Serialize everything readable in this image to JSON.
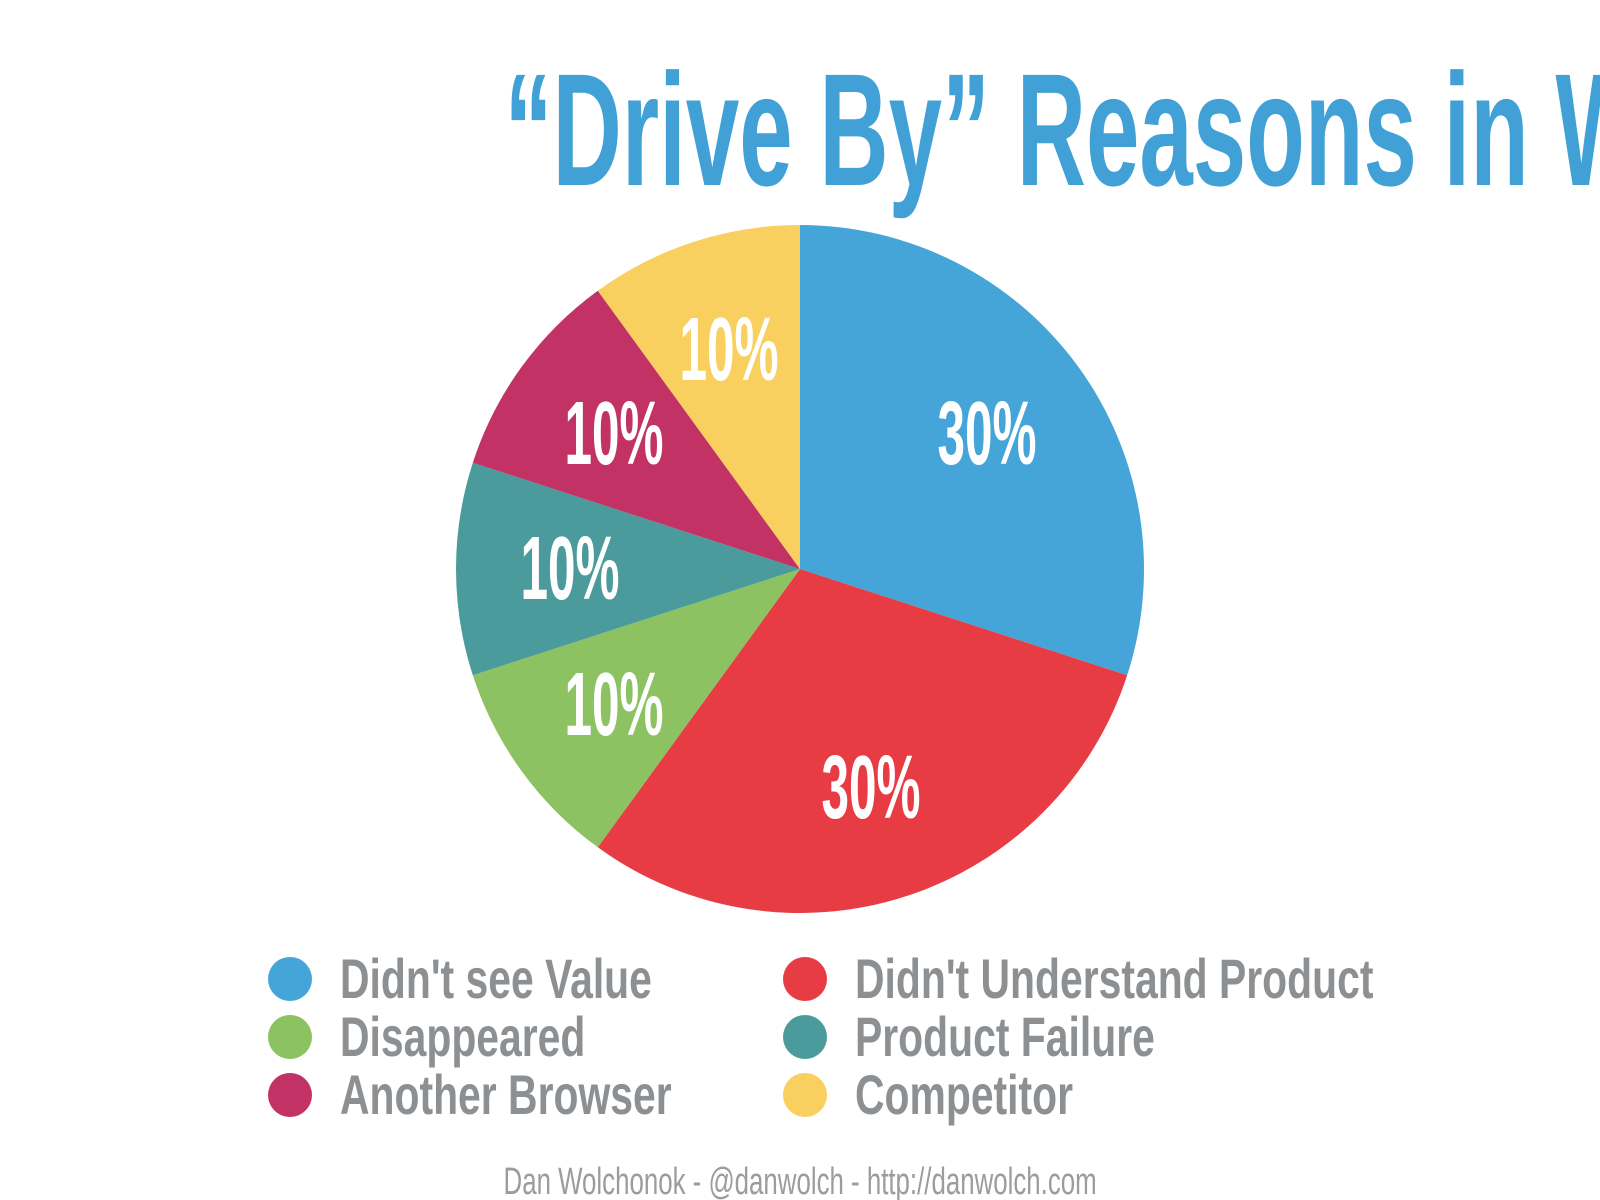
{
  "title": "“Drive By” Reasons in Week One",
  "footer": "Dan Wolchonok - @danwolch - http://danwolch.com",
  "colors": {
    "title_text": "#41A1D7",
    "legend_text": "#8D9093",
    "footer_text": "#9A9C9F",
    "slice_label_text": "#FFFFFF",
    "background": "#FFFFFF"
  },
  "chart_data": {
    "type": "pie",
    "title": "“Drive By” Reasons in Week One",
    "start_angle_deg": 0,
    "direction": "clockwise",
    "legend_position": "bottom",
    "slices": [
      {
        "label": "Didn't see Value",
        "value": 30,
        "display_label": "30%",
        "color": "#45A5D9"
      },
      {
        "label": "Didn't Understand Product",
        "value": 30,
        "display_label": "30%",
        "color": "#E83C44"
      },
      {
        "label": "Disappeared",
        "value": 10,
        "display_label": "10%",
        "color": "#8CC262"
      },
      {
        "label": "Product Failure",
        "value": 10,
        "display_label": "10%",
        "color": "#4B9B9C"
      },
      {
        "label": "Another Browser",
        "value": 10,
        "display_label": "10%",
        "color": "#C23264"
      },
      {
        "label": "Competitor",
        "value": 10,
        "display_label": "10%",
        "color": "#F9D05F"
      }
    ]
  }
}
